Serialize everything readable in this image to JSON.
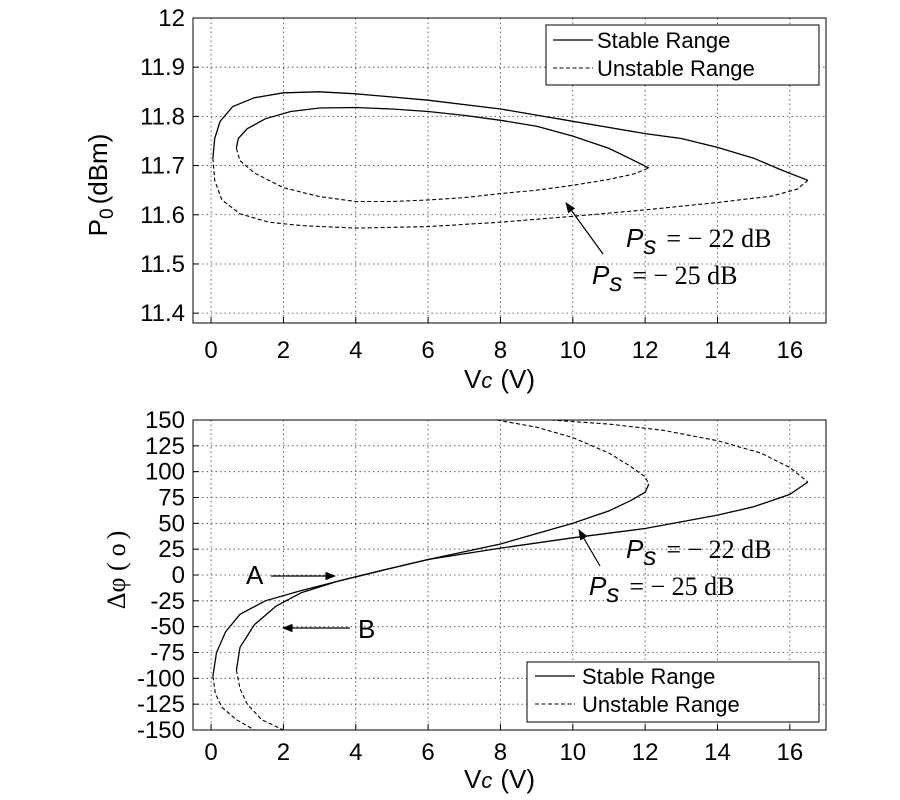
{
  "chart_data": [
    {
      "type": "line",
      "xlabel": "Vc (V)",
      "xlabel_main": "V",
      "xlabel_sub": "c",
      "xlabel_unit": "(V)",
      "ylabel": "P0 (dBm)",
      "ylabel_main": "P",
      "ylabel_sub": "0",
      "ylabel_unit": "(dBm)",
      "xlim": [
        -0.5,
        17
      ],
      "ylim": [
        11.38,
        12.0
      ],
      "xticks": [
        "0",
        "2",
        "4",
        "6",
        "8",
        "10",
        "12",
        "14",
        "16"
      ],
      "yticks": [
        "11.4",
        "11.5",
        "11.6",
        "11.7",
        "11.8",
        "11.9",
        "12"
      ],
      "grid": true,
      "legend": {
        "position": "top-right",
        "entries": [
          "Stable Range",
          "Unstable Range"
        ]
      },
      "series": [
        {
          "style": "solid",
          "x": [
            12.1,
            11.7,
            11.0,
            10.0,
            9.0,
            8.0,
            7.0,
            6.0,
            5.0,
            4.0,
            3.0,
            2.2,
            1.5,
            1.0,
            0.75,
            0.7
          ],
          "y": [
            11.695,
            11.71,
            11.735,
            11.76,
            11.78,
            11.792,
            11.802,
            11.81,
            11.815,
            11.818,
            11.817,
            11.81,
            11.795,
            11.775,
            11.755,
            11.735
          ]
        },
        {
          "style": "dashed",
          "x": [
            0.7,
            0.8,
            1.2,
            2.0,
            3.0,
            4.0,
            5.0,
            6.0,
            7.0,
            8.0,
            9.0,
            10.0,
            11.0,
            11.7,
            12.1
          ],
          "y": [
            11.735,
            11.71,
            11.685,
            11.655,
            11.637,
            11.627,
            11.627,
            11.63,
            11.635,
            11.643,
            11.65,
            11.66,
            11.672,
            11.683,
            11.695
          ]
        },
        {
          "style": "solid",
          "x": [
            16.5,
            15.8,
            15.0,
            14.0,
            13.0,
            12.0,
            10.0,
            8.0,
            6.0,
            4.0,
            3.0,
            2.0,
            1.2,
            0.6,
            0.25,
            0.1,
            0.05
          ],
          "y": [
            11.67,
            11.69,
            11.715,
            11.737,
            11.755,
            11.765,
            11.79,
            11.815,
            11.833,
            11.846,
            11.85,
            11.848,
            11.838,
            11.82,
            11.79,
            11.755,
            11.715
          ]
        },
        {
          "style": "dashed",
          "x": [
            0.05,
            0.1,
            0.3,
            0.8,
            1.6,
            2.5,
            4.0,
            6.0,
            8.0,
            10.0,
            12.0,
            14.0,
            15.5,
            16.2,
            16.5
          ],
          "y": [
            11.715,
            11.67,
            11.63,
            11.602,
            11.585,
            11.578,
            11.573,
            11.576,
            11.585,
            11.597,
            11.61,
            11.625,
            11.638,
            11.652,
            11.67
          ]
        }
      ],
      "annotations": [
        {
          "text": "= − 22 dB",
          "prefix": "P",
          "sub": "s",
          "value": "= − 22 dB",
          "at": [
            11.3,
            11.555
          ],
          "arrow_to": [
            9.6,
            11.655
          ]
        },
        {
          "text": "= − 25 dB",
          "prefix": "P",
          "sub": "s",
          "value": "= − 25 dB",
          "at": [
            10.7,
            11.505
          ],
          "arrow_from": [
            9.6,
            11.655
          ]
        }
      ]
    },
    {
      "type": "line",
      "xlabel": "Vc (V)",
      "xlabel_main": "V",
      "xlabel_sub": "c",
      "xlabel_unit": "(V)",
      "ylabel": "Δφ ( o)",
      "ylabel_main": "Δφ (",
      "ylabel_deg": "o",
      "ylabel_close": ")",
      "xlim": [
        -0.5,
        17
      ],
      "ylim": [
        -150,
        150
      ],
      "xticks": [
        "0",
        "2",
        "4",
        "6",
        "8",
        "10",
        "12",
        "14",
        "16"
      ],
      "yticks": [
        "150",
        "125",
        "100",
        "75",
        "50",
        "25",
        "0",
        "-25",
        "-50",
        "-75",
        "-100",
        "-125",
        "-150"
      ],
      "yticks_values": [
        150,
        125,
        100,
        75,
        50,
        25,
        0,
        -25,
        -50,
        -75,
        -100,
        -125,
        -150
      ],
      "grid": true,
      "legend": {
        "position": "bottom-right",
        "entries": [
          "Stable Range",
          "Unstable Range"
        ]
      },
      "series": [
        {
          "style": "dashed",
          "x": [
            7.9,
            9.0,
            10.0,
            11.0,
            11.6,
            12.0,
            12.1
          ],
          "y": [
            150,
            143,
            133,
            118,
            105,
            95,
            88
          ]
        },
        {
          "style": "solid",
          "x": [
            12.1,
            12.0,
            11.6,
            11.0,
            10.0,
            8.0,
            6.0,
            4.8,
            3.5,
            2.5,
            1.8,
            1.2,
            0.8,
            0.7
          ],
          "y": [
            88,
            80,
            72,
            62,
            50,
            30,
            15,
            5,
            -6,
            -17,
            -30,
            -48,
            -70,
            -92
          ]
        },
        {
          "style": "dashed",
          "x": [
            0.7,
            0.8,
            1.0,
            1.4,
            2.0
          ],
          "y": [
            -92,
            -110,
            -125,
            -140,
            -150
          ]
        },
        {
          "style": "dashed",
          "x": [
            9.4,
            11.0,
            12.5,
            14.0,
            15.2,
            16.0,
            16.5
          ],
          "y": [
            150,
            146,
            140,
            130,
            118,
            104,
            90
          ]
        },
        {
          "style": "solid",
          "x": [
            16.5,
            16.0,
            15.0,
            14.0,
            12.0,
            10.0,
            8.0,
            6.0,
            4.8,
            3.5,
            2.5,
            1.5,
            0.8,
            0.4,
            0.15,
            0.05
          ],
          "y": [
            90,
            78,
            66,
            58,
            45,
            36,
            26,
            15,
            5,
            -6,
            -15,
            -25,
            -38,
            -55,
            -75,
            -98
          ]
        },
        {
          "style": "dashed",
          "x": [
            0.05,
            0.12,
            0.3,
            0.7,
            1.2
          ],
          "y": [
            -98,
            -115,
            -128,
            -140,
            -150
          ]
        }
      ],
      "annotations": [
        {
          "text": "A",
          "at": [
            1.3,
            0
          ],
          "arrow_from": [
            1.6,
            0
          ],
          "arrow_to": [
            3.4,
            0
          ]
        },
        {
          "text": "B",
          "at": [
            4.0,
            -50
          ],
          "arrow_from": [
            3.7,
            -50
          ],
          "arrow_to": [
            1.9,
            -50
          ]
        },
        {
          "text": "= − 22 dB",
          "prefix": "P",
          "sub": "s",
          "value": "= − 22 dB",
          "at": [
            11.3,
            22
          ],
          "arrow_to": [
            9.9,
            43
          ]
        },
        {
          "text": "= − 25 dB",
          "prefix": "P",
          "sub": "s",
          "value": "= − 25 dB",
          "at": [
            10.7,
            -4
          ],
          "arrow_from": [
            9.9,
            43
          ]
        }
      ]
    }
  ]
}
